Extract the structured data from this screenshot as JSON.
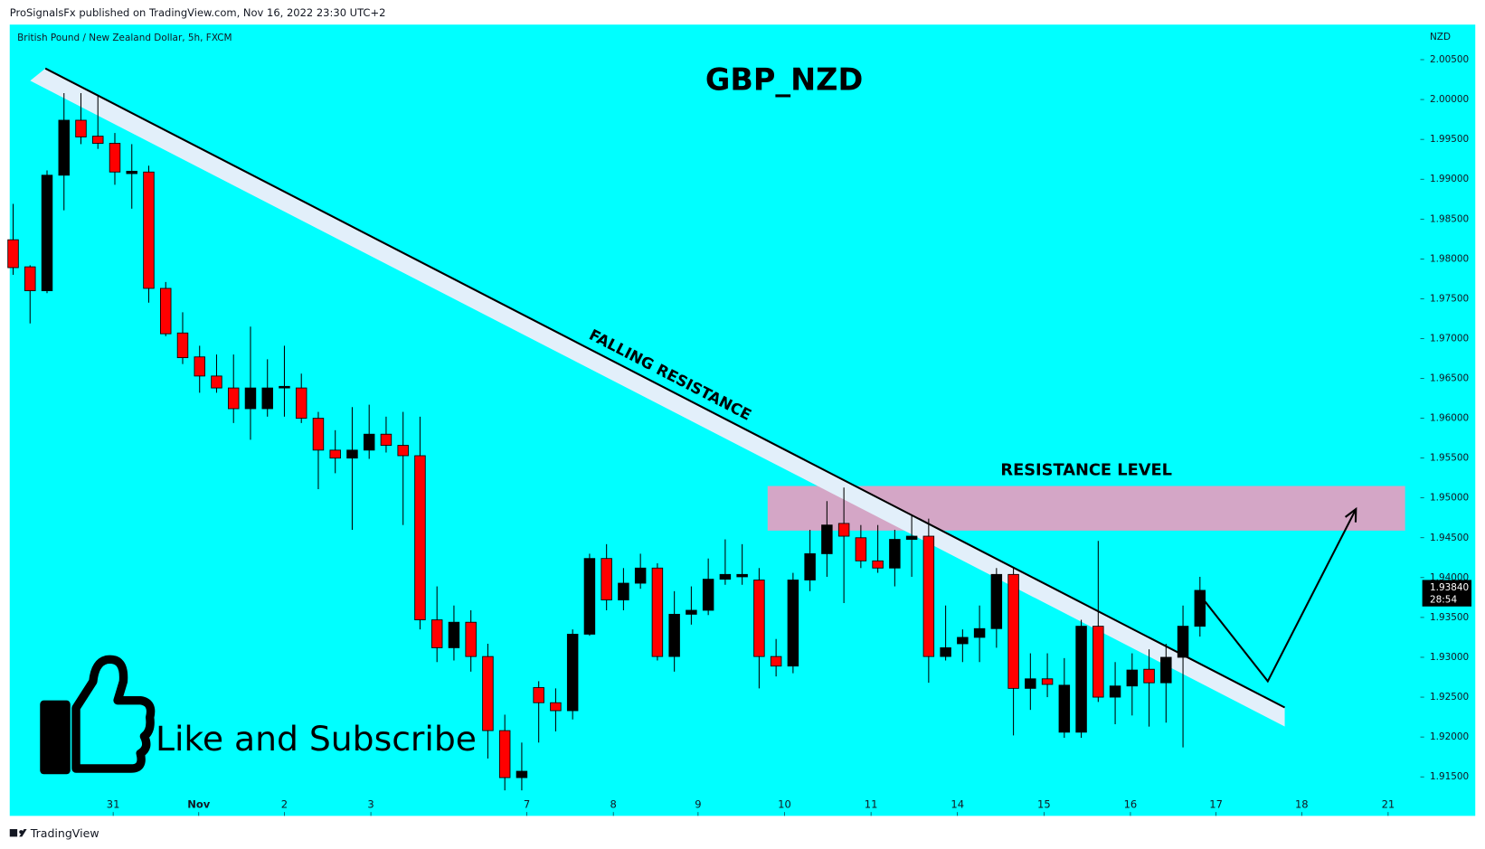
{
  "header": {
    "publisher": "ProSignalsFx published on TradingView.com, Nov 16, 2022 23:30 UTC+2",
    "footer": "TradingView"
  },
  "chart_data": {
    "type": "candlestick",
    "title": "GBP_NZD",
    "subtitle": "British Pound / New Zealand Dollar, 5h, FXCM",
    "y_unit": "NZD",
    "up_color": "#000000",
    "down_color": "#ff0000",
    "background": "#00ffff",
    "open": [
      1.9824,
      1.979,
      1.976,
      1.9905,
      1.9974,
      1.9954,
      1.9945,
      1.9907,
      1.9909,
      1.9763,
      1.9707,
      1.9677,
      1.9653,
      1.9638,
      1.9612,
      1.9612,
      1.9638,
      1.9638,
      1.96,
      1.956,
      1.955,
      1.956,
      1.958,
      1.9566,
      1.9553,
      1.9347,
      1.9312,
      1.9344,
      1.9301,
      1.9208,
      1.9149,
      1.9262,
      1.9243,
      1.9233,
      1.9329,
      1.9424,
      1.9372,
      1.9393,
      1.9412,
      1.9301,
      1.9354,
      1.9359,
      1.9398,
      1.9401,
      1.9397,
      1.9301,
      1.9289,
      1.9397,
      1.943,
      1.9468,
      1.945,
      1.9421,
      1.9412,
      1.9448,
      1.9452,
      1.9301,
      1.9317,
      1.9325,
      1.9336,
      1.9404,
      1.9261,
      1.9273,
      1.9206,
      1.9206,
      1.9339,
      1.925,
      1.9264,
      1.9285,
      1.9268,
      1.93,
      1.9339
    ],
    "high": [
      1.9869,
      1.9792,
      1.9911,
      2.0008,
      2.0008,
      2.0006,
      1.9958,
      1.9944,
      1.9917,
      1.9771,
      1.9733,
      1.9691,
      1.968,
      1.968,
      1.9715,
      1.9674,
      1.9691,
      1.9656,
      1.9608,
      1.9585,
      1.9614,
      1.9617,
      1.9602,
      1.9608,
      1.9602,
      1.9389,
      1.9365,
      1.9359,
      1.9317,
      1.9228,
      1.9193,
      1.927,
      1.9261,
      1.9335,
      1.943,
      1.9442,
      1.9412,
      1.943,
      1.9418,
      1.9383,
      1.9389,
      1.9424,
      1.9448,
      1.9442,
      1.9412,
      1.9323,
      1.9406,
      1.946,
      1.9496,
      1.9513,
      1.9466,
      1.9466,
      1.946,
      1.9478,
      1.9474,
      1.9365,
      1.9335,
      1.9365,
      1.9412,
      1.9412,
      1.9305,
      1.9305,
      1.9299,
      1.9347,
      1.9446,
      1.9294,
      1.9305,
      1.931,
      1.9317,
      1.9365,
      1.9401
    ],
    "low": [
      1.978,
      1.9719,
      1.9757,
      1.9861,
      1.9944,
      1.9938,
      1.9893,
      1.9863,
      1.9745,
      1.9703,
      1.9668,
      1.9632,
      1.9632,
      1.9594,
      1.9573,
      1.9602,
      1.9602,
      1.9594,
      1.9511,
      1.9531,
      1.946,
      1.9549,
      1.9557,
      1.9466,
      1.9335,
      1.9294,
      1.9296,
      1.9282,
      1.9173,
      1.9133,
      1.9133,
      1.9193,
      1.9207,
      1.9222,
      1.9327,
      1.9359,
      1.9359,
      1.9386,
      1.9296,
      1.9282,
      1.9341,
      1.9353,
      1.9391,
      1.9391,
      1.9261,
      1.9276,
      1.928,
      1.9383,
      1.9401,
      1.9368,
      1.9412,
      1.9406,
      1.9389,
      1.9401,
      1.9268,
      1.9296,
      1.9294,
      1.9294,
      1.9312,
      1.9202,
      1.9234,
      1.925,
      1.9199,
      1.9199,
      1.9244,
      1.9216,
      1.9227,
      1.9213,
      1.9218,
      1.9187,
      1.9326
    ],
    "close": [
      1.9789,
      1.976,
      1.9905,
      1.9974,
      1.9953,
      1.9945,
      1.9909,
      1.991,
      1.9763,
      1.9706,
      1.9676,
      1.9653,
      1.9638,
      1.9612,
      1.9638,
      1.9638,
      1.964,
      1.96,
      1.956,
      1.955,
      1.956,
      1.958,
      1.9566,
      1.9553,
      1.9347,
      1.9312,
      1.9344,
      1.9301,
      1.9208,
      1.9149,
      1.9157,
      1.9243,
      1.9233,
      1.9329,
      1.9424,
      1.9372,
      1.9393,
      1.9412,
      1.9301,
      1.9354,
      1.9359,
      1.9398,
      1.9404,
      1.9404,
      1.9301,
      1.9289,
      1.9397,
      1.943,
      1.9466,
      1.9452,
      1.9421,
      1.9412,
      1.9448,
      1.9452,
      1.9301,
      1.9312,
      1.9325,
      1.9336,
      1.9404,
      1.9261,
      1.9273,
      1.9266,
      1.9265,
      1.9339,
      1.925,
      1.9264,
      1.9284,
      1.9268,
      1.93,
      1.9339,
      1.9384
    ],
    "xlim": [
      -0.2,
      83
    ],
    "ylim": [
      1.9101,
      2.0094
    ],
    "yticks": [
      {
        "value": 1.915,
        "label": "1.91500"
      },
      {
        "value": 1.92,
        "label": "1.92000"
      },
      {
        "value": 1.925,
        "label": "1.92500"
      },
      {
        "value": 1.93,
        "label": "1.93000"
      },
      {
        "value": 1.935,
        "label": "1.93500"
      },
      {
        "value": 1.94,
        "label": "1.94000"
      },
      {
        "value": 1.945,
        "label": "1.94500"
      },
      {
        "value": 1.95,
        "label": "1.95000"
      },
      {
        "value": 1.955,
        "label": "1.95500"
      },
      {
        "value": 1.96,
        "label": "1.96000"
      },
      {
        "value": 1.965,
        "label": "1.96500"
      },
      {
        "value": 1.97,
        "label": "1.97000"
      },
      {
        "value": 1.975,
        "label": "1.97500"
      },
      {
        "value": 1.98,
        "label": "1.98000"
      },
      {
        "value": 1.985,
        "label": "1.98500"
      },
      {
        "value": 1.99,
        "label": "1.99000"
      },
      {
        "value": 1.995,
        "label": "1.99500"
      },
      {
        "value": 2.0,
        "label": "2.00000"
      },
      {
        "value": 2.005,
        "label": "2.00500"
      }
    ],
    "xticks": [
      {
        "value": 5.9,
        "label": "31"
      },
      {
        "value": 10.95,
        "label": "Nov"
      },
      {
        "value": 16.0,
        "label": "2"
      },
      {
        "value": 21.1,
        "label": "3"
      },
      {
        "value": 30.3,
        "label": "7"
      },
      {
        "value": 35.4,
        "label": "8"
      },
      {
        "value": 40.4,
        "label": "9"
      },
      {
        "value": 45.5,
        "label": "10"
      },
      {
        "value": 50.6,
        "label": "11"
      },
      {
        "value": 55.7,
        "label": "14"
      },
      {
        "value": 60.8,
        "label": "15"
      },
      {
        "value": 65.9,
        "label": "16"
      },
      {
        "value": 70.95,
        "label": "17"
      },
      {
        "value": 76.0,
        "label": "18"
      },
      {
        "value": 81.1,
        "label": "21"
      }
    ],
    "last_price": {
      "value": 1.9384,
      "label": "1.93840"
    },
    "countdown": "28:54",
    "annotations": {
      "trendline": {
        "label": "FALLING RESISTANCE",
        "x": [
          1.9,
          75.0
        ],
        "y": [
          2.0039,
          1.9237
        ]
      },
      "zone": {
        "label": "RESISTANCE LEVEL",
        "color": "#d4a6c6",
        "x": [
          44.5,
          82.1
        ],
        "y": [
          1.9515,
          1.9459
        ]
      },
      "arrow": {
        "x": [
          70.3,
          74.0,
          79.2
        ],
        "y": [
          1.937,
          1.927,
          1.9486
        ]
      },
      "promo": "Like and Subscribe"
    }
  }
}
